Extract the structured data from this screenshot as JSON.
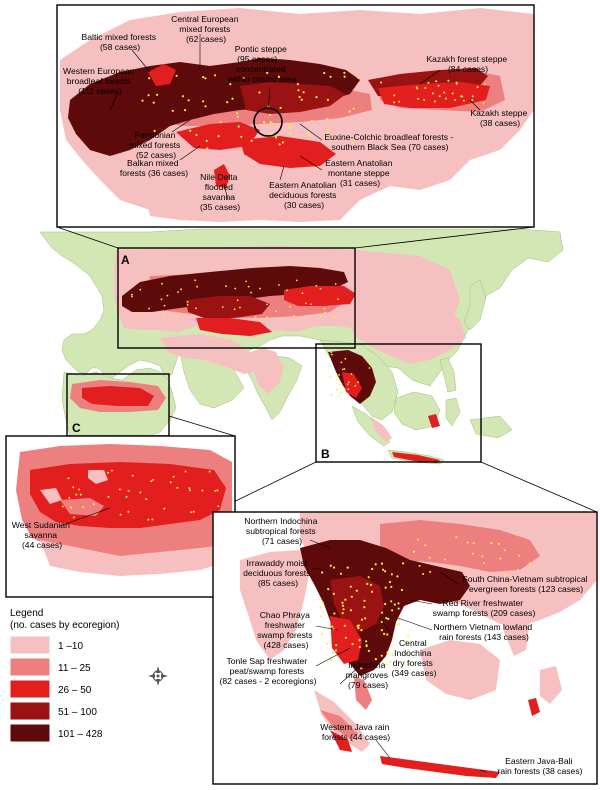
{
  "insets": {
    "A": {
      "letter": "A"
    },
    "B": {
      "letter": "B"
    },
    "C": {
      "letter": "C"
    }
  },
  "labels_a": [
    {
      "key": "central_european",
      "lines": [
        "Central European",
        "mixed forests",
        "(62 cases)"
      ]
    },
    {
      "key": "baltic",
      "lines": [
        "Baltic mixed forests",
        "(58 cases)"
      ]
    },
    {
      "key": "western_european",
      "lines": [
        "Western European",
        "broadleaf forests",
        "(111 cases)"
      ]
    },
    {
      "key": "pontic",
      "lines": [
        "Pontic steppe",
        "(95 cases) –",
        "concentrated",
        "within circled area"
      ]
    },
    {
      "key": "kazakh_forest",
      "lines": [
        "Kazakh forest steppe",
        "(84 cases)"
      ]
    },
    {
      "key": "kazakh_steppe",
      "lines": [
        "Kazakh steppe",
        "(38 cases)"
      ]
    },
    {
      "key": "pannonian",
      "lines": [
        "Pannonian",
        "mixed forests",
        "(52 cases)"
      ]
    },
    {
      "key": "euxine",
      "lines": [
        "Euxine-Colchic broadleaf forests -",
        "southern Black Sea (70 cases)"
      ]
    },
    {
      "key": "balkan",
      "lines": [
        "Balkan mixed",
        "forests (36 cases)"
      ]
    },
    {
      "key": "eastern_anatolian_steppe",
      "lines": [
        "Eastern Anatolian",
        "montane steppe",
        "(31 cases)"
      ]
    },
    {
      "key": "nile",
      "lines": [
        "Nile Delta",
        "flooded",
        "savanna",
        "(35 cases)"
      ]
    },
    {
      "key": "eastern_anatolian_forests",
      "lines": [
        "Eastern Anatolian",
        "deciduous forests",
        "(30 cases)"
      ]
    }
  ],
  "labels_c": [
    {
      "key": "west_sudanian",
      "lines": [
        "West Sudanian",
        "savanna",
        "(44 cases)"
      ]
    }
  ],
  "labels_b": [
    {
      "key": "northern_indochina",
      "lines": [
        "Northern Indochina",
        "subtropical forests",
        "(71 cases)"
      ]
    },
    {
      "key": "irrawaddy",
      "lines": [
        "Irrawaddy moist",
        "deciduous forests",
        "(85 cases)"
      ]
    },
    {
      "key": "south_china",
      "lines": [
        "South China-Vietnam subtropical",
        "evergreen forests (123 cases)"
      ]
    },
    {
      "key": "red_river",
      "lines": [
        "Red River freshwater",
        "swamp forests (209 cases)"
      ]
    },
    {
      "key": "chao_phraya",
      "lines": [
        "Chao Phraya",
        "freshwater",
        "swamp forests",
        "(428 cases)"
      ]
    },
    {
      "key": "northern_vietnam",
      "lines": [
        "Northern Vietnam lowland",
        "rain forests (143 cases)"
      ]
    },
    {
      "key": "central_indochina",
      "lines": [
        "Central",
        "Indochina",
        "dry forests",
        "(349 cases)"
      ]
    },
    {
      "key": "tonle_sap",
      "lines": [
        "Tonle Sap freshwater",
        "peat/swamp forests",
        "(82 cases - 2 ecoregions)"
      ]
    },
    {
      "key": "indochina_mangroves",
      "lines": [
        "Indochina",
        "mangroves",
        "(79 cases)"
      ]
    },
    {
      "key": "western_java",
      "lines": [
        "Western Java rain",
        "forests (44 cases)"
      ]
    },
    {
      "key": "eastern_java",
      "lines": [
        "Eastern Java-Bali",
        "rain forests (38 cases)"
      ]
    }
  ],
  "legend": {
    "title": "Legend",
    "subtitle": "(no. cases by ecoregion)",
    "items": [
      {
        "label": "1 –10",
        "color": "#f7c0c0"
      },
      {
        "label": "11 – 25",
        "color": "#ee7f7f"
      },
      {
        "label": "26 – 50",
        "color": "#e31e1e"
      },
      {
        "label": "51 – 100",
        "color": "#9a1212"
      },
      {
        "label": "101 – 428",
        "color": "#5e0a0a"
      }
    ]
  },
  "colors": {
    "land": "#d3e7b5",
    "land_stroke": "#9cbf7a",
    "pink": "#f7c0c0",
    "light_red": "#ee7f7f",
    "red": "#e31e1e",
    "dark_red": "#9a1212",
    "maroon": "#5e0a0a",
    "case_dot": "#ffef3a"
  },
  "icons": {
    "compass": "compass-rose-icon"
  }
}
